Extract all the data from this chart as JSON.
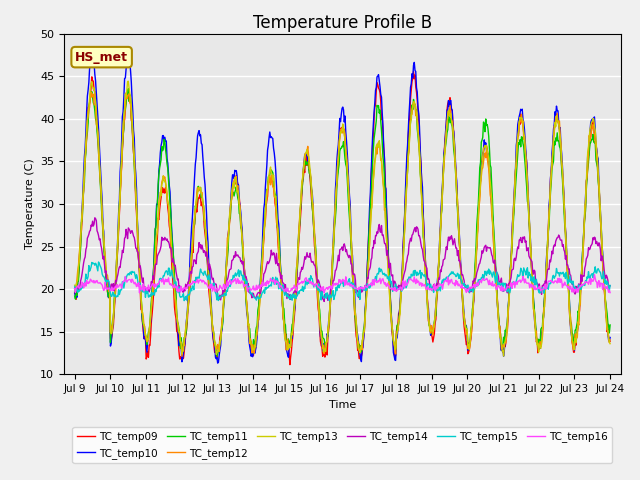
{
  "title": "Temperature Profile B",
  "xlabel": "Time",
  "ylabel": "Temperature (C)",
  "ylim": [
    10,
    50
  ],
  "annotation": "HS_met",
  "series_colors": {
    "TC_temp09": "#ff0000",
    "TC_temp10": "#0000ff",
    "TC_temp11": "#00cc00",
    "TC_temp12": "#ff8800",
    "TC_temp13": "#cccc00",
    "TC_temp14": "#bb00bb",
    "TC_temp15": "#00cccc",
    "TC_temp16": "#ff44ff"
  },
  "x_tick_labels": [
    "Jul 9",
    "Jul 10",
    "Jul 11",
    "Jul 12",
    "Jul 13",
    "Jul 14",
    "Jul 15",
    "Jul 16",
    "Jul 17",
    "Jul 18",
    "Jul 19",
    "Jul 20",
    "Jul 21",
    "Jul 22",
    "Jul 23",
    "Jul 24"
  ],
  "x_tick_positions": [
    0,
    1,
    2,
    3,
    4,
    5,
    6,
    7,
    8,
    9,
    10,
    11,
    12,
    13,
    14,
    15
  ],
  "background_color": "#e8e8e8",
  "grid_color": "#ffffff",
  "title_fontsize": 12,
  "n_days": 15,
  "pts_per_day": 48,
  "peaks09": [
    44,
    43,
    32,
    31,
    33,
    33,
    35,
    39,
    44,
    45,
    42,
    37,
    40,
    40,
    39
  ],
  "lows09": [
    19,
    14,
    12,
    12,
    13,
    13,
    12,
    12,
    12,
    15,
    14,
    13,
    13,
    13,
    14
  ],
  "peaks10": [
    47,
    47,
    38,
    38,
    34,
    38,
    36,
    41,
    45,
    46,
    42,
    37,
    41,
    41,
    40
  ],
  "lows10": [
    19,
    14,
    13,
    12,
    12,
    12,
    13,
    13,
    12,
    15,
    15,
    13,
    13,
    13,
    14
  ],
  "peaks11": [
    43,
    43,
    37,
    32,
    32,
    34,
    35,
    37,
    41,
    42,
    40,
    40,
    38,
    38,
    38
  ],
  "lows11": [
    19,
    15,
    14,
    13,
    13,
    14,
    14,
    13,
    13,
    15,
    15,
    13,
    14,
    14,
    15
  ],
  "peaks12": [
    43,
    43,
    33,
    32,
    33,
    33,
    36,
    39,
    37,
    42,
    41,
    36,
    40,
    40,
    39
  ],
  "lows12": [
    20,
    15,
    14,
    13,
    13,
    13,
    13,
    13,
    13,
    15,
    15,
    13,
    13,
    13,
    14
  ],
  "peaks13": [
    44,
    44,
    33,
    32,
    33,
    34,
    36,
    39,
    37,
    42,
    41,
    37,
    40,
    40,
    40
  ],
  "lows13": [
    20,
    15,
    14,
    13,
    13,
    13,
    13,
    13,
    13,
    15,
    15,
    13,
    13,
    13,
    14
  ],
  "peaks14": [
    28,
    27,
    26,
    25,
    24,
    24,
    24,
    25,
    27,
    27,
    26,
    25,
    26,
    26,
    26
  ],
  "lows14": [
    20,
    20,
    20,
    20,
    19,
    19,
    19,
    19,
    20,
    20,
    20,
    20,
    20,
    20,
    20
  ],
  "peaks15": [
    23,
    22,
    22,
    22,
    22,
    21,
    21,
    21,
    22,
    22,
    22,
    22,
    22,
    22,
    22
  ],
  "lows15": [
    20,
    19,
    19,
    19,
    19,
    19,
    19,
    19,
    20,
    20,
    20,
    20,
    20,
    20,
    20
  ],
  "peaks16": [
    21,
    21,
    21,
    21,
    21,
    21,
    21,
    21,
    21,
    21,
    21,
    21,
    21,
    21,
    21
  ],
  "lows16": [
    20,
    20,
    20,
    20,
    20,
    20,
    20,
    20,
    20,
    20,
    20,
    20,
    20,
    20,
    20
  ]
}
